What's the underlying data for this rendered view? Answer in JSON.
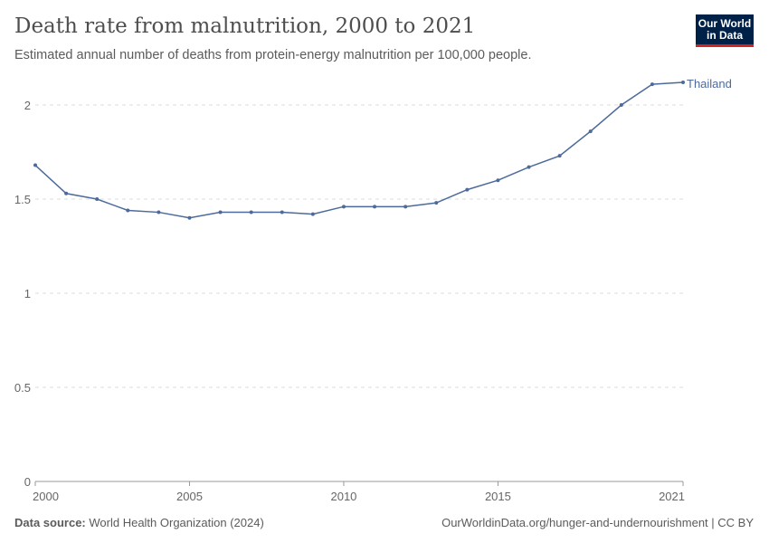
{
  "header": {
    "title": "Death rate from malnutrition, 2000 to 2021",
    "subtitle": "Estimated annual number of deaths from protein-energy malnutrition per 100,000 people.",
    "logo_line1": "Our World",
    "logo_line2": "in Data"
  },
  "footer": {
    "source_label": "Data source:",
    "source": "World Health Organization (2024)",
    "url": "OurWorldinData.org/hunger-and-undernourishment | CC BY"
  },
  "chart_data": {
    "type": "line",
    "title": "Death rate from malnutrition, 2000 to 2021",
    "xlim": [
      2000,
      2021
    ],
    "ylim": [
      0,
      2
    ],
    "xticks": [
      2000,
      2005,
      2010,
      2015,
      2021
    ],
    "yticks": [
      0,
      0.5,
      1,
      1.5,
      2
    ],
    "grid": "horizontal dashed",
    "legend": "inline-right",
    "series": [
      {
        "name": "Thailand",
        "color": "#4c6a9c",
        "x": [
          2000,
          2001,
          2002,
          2003,
          2004,
          2005,
          2006,
          2007,
          2008,
          2009,
          2010,
          2011,
          2012,
          2013,
          2014,
          2015,
          2016,
          2017,
          2018,
          2019,
          2020,
          2021
        ],
        "values": [
          1.68,
          1.53,
          1.5,
          1.44,
          1.43,
          1.4,
          1.43,
          1.43,
          1.43,
          1.42,
          1.46,
          1.46,
          1.46,
          1.48,
          1.55,
          1.6,
          1.67,
          1.73,
          1.86,
          2.0,
          2.11,
          2.12
        ]
      }
    ]
  }
}
